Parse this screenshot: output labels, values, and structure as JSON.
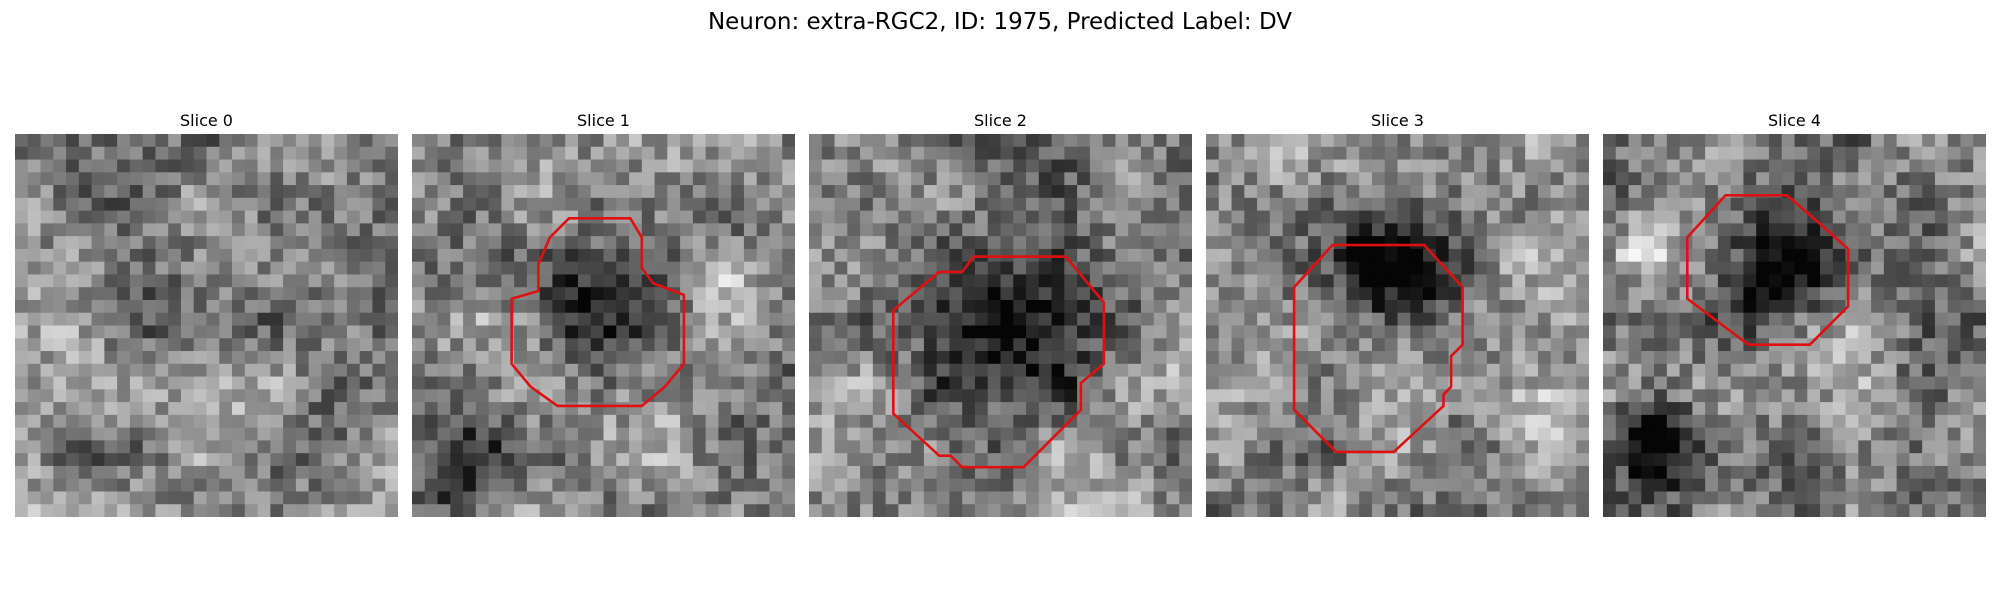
{
  "figure": {
    "title": "Neuron: extra-RGC2, ID: 1975, Predicted Label: DV"
  },
  "contour_color": "#e01010",
  "slices": [
    {
      "label": "Slice 0",
      "seed": 11,
      "blobs": [
        [
          0.5,
          0.45,
          0.55,
          0.05
        ]
      ],
      "contour": []
    },
    {
      "label": "Slice 1",
      "seed": 23,
      "blobs": [
        [
          0.47,
          0.47,
          0.2,
          0.55
        ],
        [
          0.12,
          0.88,
          0.16,
          0.45
        ],
        [
          0.82,
          0.36,
          0.12,
          -0.35
        ]
      ],
      "contour": [
        [
          0.41,
          0.22
        ],
        [
          0.57,
          0.22
        ],
        [
          0.6,
          0.27
        ],
        [
          0.6,
          0.35
        ],
        [
          0.63,
          0.39
        ],
        [
          0.71,
          0.42
        ],
        [
          0.71,
          0.6
        ],
        [
          0.66,
          0.66
        ],
        [
          0.6,
          0.71
        ],
        [
          0.38,
          0.71
        ],
        [
          0.31,
          0.66
        ],
        [
          0.26,
          0.6
        ],
        [
          0.26,
          0.43
        ],
        [
          0.33,
          0.41
        ],
        [
          0.33,
          0.34
        ],
        [
          0.36,
          0.27
        ]
      ],
      "contour_points_note": ""
    },
    {
      "label": "Slice 2",
      "seed": 37,
      "blobs": [
        [
          0.5,
          0.47,
          0.3,
          0.55
        ]
      ],
      "contour": [
        [
          0.43,
          0.32
        ],
        [
          0.67,
          0.32
        ],
        [
          0.77,
          0.44
        ],
        [
          0.77,
          0.6
        ],
        [
          0.71,
          0.65
        ],
        [
          0.71,
          0.72
        ],
        [
          0.56,
          0.87
        ],
        [
          0.4,
          0.87
        ],
        [
          0.37,
          0.84
        ],
        [
          0.34,
          0.84
        ],
        [
          0.22,
          0.73
        ],
        [
          0.22,
          0.46
        ],
        [
          0.34,
          0.36
        ],
        [
          0.4,
          0.36
        ]
      ],
      "contour_points_note": ""
    },
    {
      "label": "Slice 3",
      "seed": 51,
      "blobs": [
        [
          0.5,
          0.36,
          0.26,
          0.55
        ],
        [
          0.88,
          0.72,
          0.14,
          -0.3
        ]
      ],
      "contour": [
        [
          0.33,
          0.29
        ],
        [
          0.57,
          0.29
        ],
        [
          0.67,
          0.4
        ],
        [
          0.67,
          0.55
        ],
        [
          0.64,
          0.58
        ],
        [
          0.64,
          0.66
        ],
        [
          0.62,
          0.68
        ],
        [
          0.62,
          0.71
        ],
        [
          0.49,
          0.83
        ],
        [
          0.34,
          0.83
        ],
        [
          0.23,
          0.72
        ],
        [
          0.23,
          0.4
        ]
      ],
      "contour_points_note": ""
    },
    {
      "label": "Slice 4",
      "seed": 67,
      "blobs": [
        [
          0.45,
          0.35,
          0.2,
          0.6
        ],
        [
          0.13,
          0.8,
          0.13,
          0.55
        ],
        [
          0.1,
          0.3,
          0.1,
          -0.3
        ]
      ],
      "contour": [
        [
          0.32,
          0.16
        ],
        [
          0.48,
          0.16
        ],
        [
          0.55,
          0.22
        ],
        [
          0.64,
          0.3
        ],
        [
          0.64,
          0.45
        ],
        [
          0.54,
          0.55
        ],
        [
          0.38,
          0.55
        ],
        [
          0.22,
          0.43
        ],
        [
          0.22,
          0.27
        ]
      ],
      "contour_points_note": ""
    }
  ]
}
